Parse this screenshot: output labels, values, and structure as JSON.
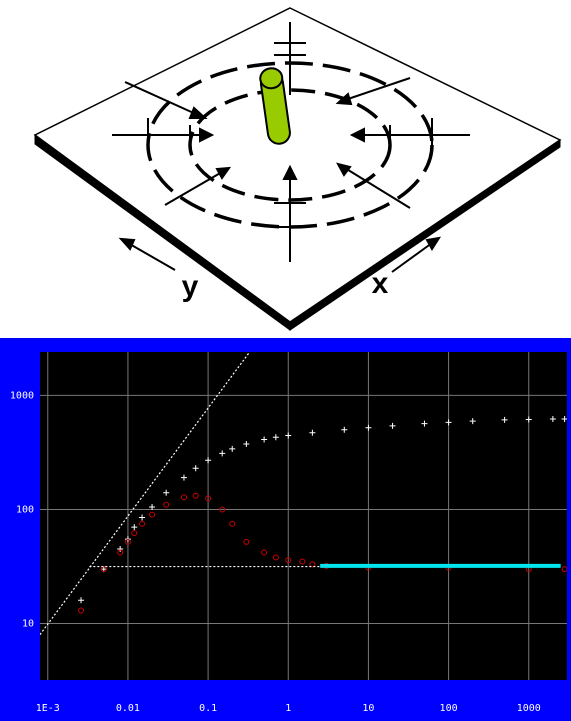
{
  "diagram": {
    "y_label": "y",
    "x_label": "x"
  },
  "chart_data": {
    "type": "scatter",
    "log_x": true,
    "log_y": true,
    "grid": true,
    "xlim": [
      0.0008,
      3000
    ],
    "ylim": [
      3.2,
      2400
    ],
    "xticks": [
      {
        "value": 0.001,
        "label": "1E-3"
      },
      0.01,
      0.1,
      1,
      10,
      100,
      1000
    ],
    "yticks": [
      10,
      100,
      1000
    ],
    "series": [
      {
        "marker": "plus",
        "color": "#ffffff",
        "x": [
          0.0026,
          0.005,
          0.008,
          0.01,
          0.012,
          0.015,
          0.02,
          0.03,
          0.05,
          0.07,
          0.1,
          0.15,
          0.2,
          0.3,
          0.5,
          0.7,
          1,
          2,
          5,
          10,
          20,
          50,
          100,
          200,
          500,
          1000,
          2000,
          2800
        ],
        "values": [
          16,
          30,
          45,
          55,
          70,
          85,
          105,
          140,
          190,
          230,
          270,
          310,
          340,
          375,
          410,
          430,
          445,
          470,
          500,
          520,
          540,
          565,
          580,
          595,
          610,
          615,
          620,
          620
        ]
      },
      {
        "marker": "circle",
        "color": "#cc0000",
        "x": [
          0.0026,
          0.005,
          0.008,
          0.01,
          0.012,
          0.015,
          0.02,
          0.03,
          0.05,
          0.07,
          0.1,
          0.15,
          0.2,
          0.3,
          0.5,
          0.7,
          1,
          1.5,
          2,
          3,
          10,
          100,
          1000,
          2800
        ],
        "values": [
          13,
          30,
          42,
          52,
          62,
          75,
          90,
          110,
          128,
          132,
          125,
          100,
          75,
          52,
          42,
          38,
          36,
          35,
          33,
          32,
          31,
          31,
          30,
          30
        ]
      },
      {
        "marker": "line",
        "color": "#00e5ee",
        "x": [
          2.5,
          2500
        ],
        "values": [
          32,
          32
        ]
      },
      {
        "marker": "dotted",
        "color": "#ffffff",
        "x": [
          0.0033,
          2.5
        ],
        "values": [
          31.6,
          31.6
        ]
      },
      {
        "marker": "dotted",
        "color": "#ffffff",
        "x": [
          0.0008,
          0.33
        ],
        "values": [
          8,
          2400
        ]
      }
    ]
  }
}
